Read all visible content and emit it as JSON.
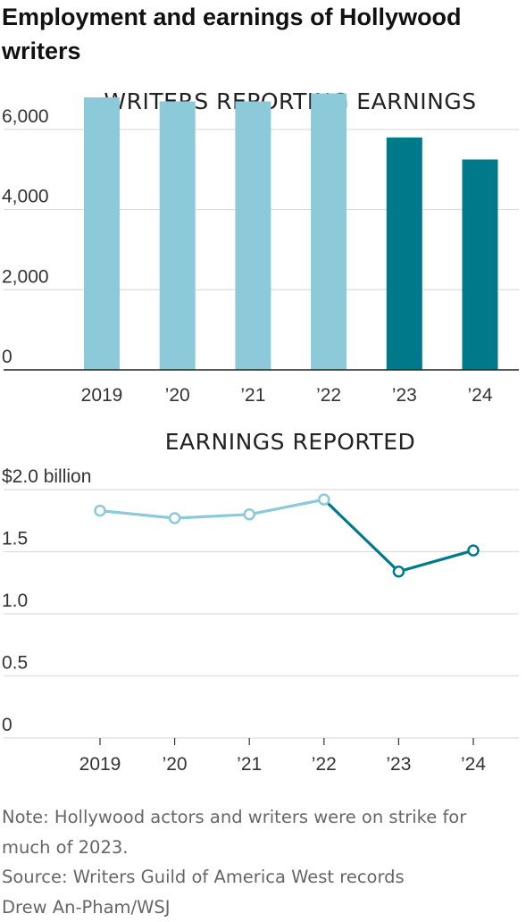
{
  "title": "Employment and earnings of Hollywood writers",
  "colors": {
    "pre_strike": "#8ccad9",
    "strike_era": "#007a8a",
    "grid": "#dddddd",
    "axis": "#222222"
  },
  "chart_data": [
    {
      "type": "bar",
      "title": "WRITERS REPORTING EARNINGS",
      "categories": [
        "2019",
        "’20",
        "’21",
        "’22",
        "’23",
        "’24"
      ],
      "values": [
        6800,
        6700,
        6700,
        6900,
        5800,
        5250
      ],
      "ylim": [
        0,
        7000
      ],
      "yticks": [
        0,
        2000,
        4000,
        6000
      ],
      "ytick_labels": [
        "0",
        "2,000",
        "4,000",
        "6,000"
      ],
      "grid": true
    },
    {
      "type": "line",
      "title": "EARNINGS REPORTED",
      "categories": [
        "2019",
        "’20",
        "’21",
        "’22",
        "’23",
        "’24"
      ],
      "values": [
        1.83,
        1.77,
        1.8,
        1.92,
        1.34,
        1.51
      ],
      "ylim": [
        0,
        2.0
      ],
      "yticks": [
        0,
        0.5,
        1.0,
        1.5,
        2.0
      ],
      "ytick_labels": [
        "0",
        "0.5",
        "1.0",
        "1.5",
        "$2.0 billion"
      ],
      "grid": true
    }
  ],
  "notes": {
    "note": "Note: Hollywood actors and writers were on strike for much of 2023.",
    "source": "Source: Writers Guild of America West records",
    "credit": "Drew An-Pham/WSJ"
  }
}
